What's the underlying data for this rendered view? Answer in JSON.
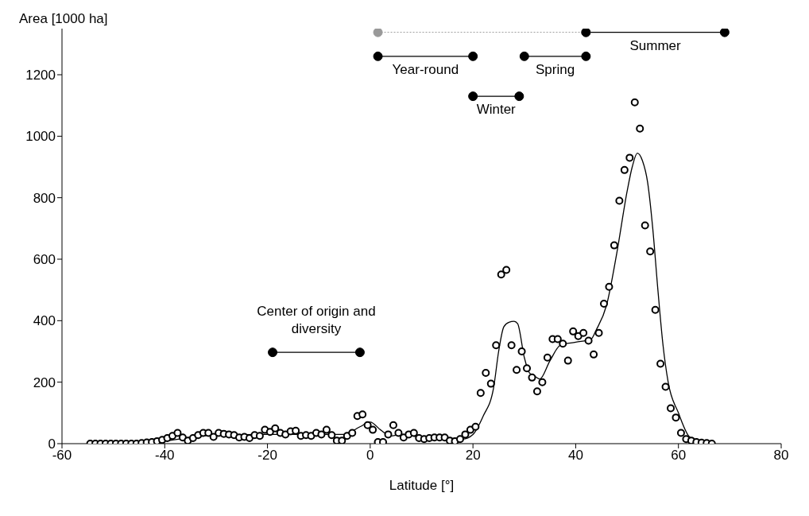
{
  "chart_data": {
    "type": "scatter",
    "xlabel": "Latitude [°]",
    "ylabel": "Area [1000 ha]",
    "xlim": [
      -60,
      80
    ],
    "xticks": [
      -60,
      -40,
      -20,
      0,
      20,
      40,
      60,
      80
    ],
    "ylim": [
      0,
      1350
    ],
    "yticks": [
      0,
      200,
      400,
      600,
      800,
      1000,
      1200
    ],
    "grid": false,
    "legend": false,
    "series": [
      {
        "marker": "circle",
        "color": "#000000",
        "x": [
          -54.5,
          -53.5,
          -52.5,
          -51.5,
          -50.5,
          -49.5,
          -48.5,
          -47.5,
          -46.5,
          -45.5,
          -44.5,
          -43.5,
          -42.5,
          -41.5,
          -40.5,
          -39.5,
          -38.5,
          -37.5,
          -36.5,
          -35.5,
          -34.5,
          -33.5,
          -32.5,
          -31.5,
          -30.5,
          -29.5,
          -28.5,
          -27.5,
          -26.5,
          -25.5,
          -24.5,
          -23.5,
          -22.5,
          -21.5,
          -20.5,
          -19.5,
          -18.5,
          -17.5,
          -16.5,
          -15.5,
          -14.5,
          -13.5,
          -12.5,
          -11.5,
          -10.5,
          -9.5,
          -8.5,
          -7.5,
          -6.5,
          -5.5,
          -4.5,
          -3.5,
          -2.5,
          -1.5,
          -0.5,
          0.5,
          1.5,
          2.5,
          3.5,
          4.5,
          5.5,
          6.5,
          7.5,
          8.5,
          9.5,
          10.5,
          11.5,
          12.5,
          13.5,
          14.5,
          15.5,
          16.5,
          17.5,
          18.5,
          19.5,
          20.5,
          21.5,
          22.5,
          23.5,
          24.5,
          25.5,
          26.5,
          27.5,
          28.5,
          29.5,
          30.5,
          31.5,
          32.5,
          33.5,
          34.5,
          35.5,
          36.5,
          37.5,
          38.5,
          39.5,
          40.5,
          41.5,
          42.5,
          43.5,
          44.5,
          45.5,
          46.5,
          47.5,
          48.5,
          49.5,
          50.5,
          51.5,
          52.5,
          53.5,
          54.5,
          55.5,
          56.5,
          57.5,
          58.5,
          59.5,
          60.5,
          61.5,
          62.5,
          63.5,
          64.5,
          65.5,
          66.5
        ],
        "values": [
          0,
          0,
          0,
          0,
          0,
          0,
          0,
          0,
          0,
          0,
          2,
          4,
          5,
          8,
          12,
          18,
          25,
          35,
          20,
          10,
          18,
          28,
          35,
          35,
          22,
          35,
          32,
          30,
          28,
          20,
          22,
          18,
          28,
          25,
          45,
          38,
          50,
          35,
          30,
          40,
          42,
          25,
          28,
          25,
          35,
          30,
          45,
          28,
          10,
          10,
          25,
          35,
          90,
          95,
          60,
          45,
          5,
          5,
          30,
          60,
          35,
          20,
          30,
          35,
          18,
          15,
          18,
          20,
          20,
          20,
          10,
          8,
          15,
          30,
          45,
          55,
          165,
          230,
          195,
          320,
          550,
          565,
          320,
          240,
          300,
          245,
          215,
          170,
          200,
          280,
          340,
          340,
          325,
          270,
          365,
          350,
          360,
          335,
          290,
          360,
          455,
          510,
          645,
          790,
          890,
          930,
          1110,
          1025,
          710,
          625,
          435,
          260,
          185,
          115,
          85,
          35,
          15,
          10,
          5,
          3,
          2,
          0
        ]
      },
      {
        "type": "line",
        "marker": "none",
        "line_style": "solid",
        "color": "#000000",
        "x": [
          -54.5,
          -45,
          -40,
          -35,
          -30,
          -20,
          -10,
          -5,
          -2,
          0,
          2,
          4,
          6,
          10,
          15,
          18,
          20,
          22,
          24,
          25,
          26,
          27,
          28,
          28.7,
          30,
          31,
          32,
          33,
          35,
          37,
          40,
          43,
          44,
          46,
          48,
          50,
          51,
          52,
          53,
          54,
          55,
          56,
          57,
          58,
          60,
          62,
          64,
          66.5
        ],
        "values": [
          0,
          2,
          8,
          20,
          28,
          30,
          30,
          30,
          55,
          70,
          45,
          25,
          30,
          20,
          15,
          15,
          30,
          90,
          180,
          300,
          380,
          395,
          398,
          390,
          280,
          230,
          220,
          210,
          270,
          320,
          330,
          340,
          370,
          450,
          620,
          820,
          900,
          945,
          920,
          850,
          700,
          500,
          320,
          200,
          100,
          25,
          5,
          0
        ]
      },
      {
        "type": "line",
        "name": "Center of origin and diversity",
        "marker": "circle",
        "line_style": "solid",
        "color": "#000000",
        "x": [
          -19,
          -2
        ],
        "values": [
          297,
          297
        ]
      },
      {
        "type": "line",
        "name": "Year-round",
        "marker": "circle",
        "line_style": "solid",
        "color": "#000000",
        "x": [
          1.5,
          20
        ],
        "values": [
          1260,
          1260
        ]
      },
      {
        "type": "line",
        "name": "Winter",
        "marker": "circle",
        "line_style": "solid",
        "color": "#000000",
        "x": [
          20,
          29
        ],
        "values": [
          1130,
          1130
        ]
      },
      {
        "type": "line",
        "name": "Spring",
        "marker": "circle",
        "line_style": "solid",
        "color": "#000000",
        "x": [
          30,
          42
        ],
        "values": [
          1260,
          1260
        ]
      },
      {
        "type": "line",
        "marker": "circle",
        "line_style": "dotted",
        "color": "#999999",
        "x": [
          1.5,
          42
        ],
        "values": [
          1338,
          1338
        ]
      },
      {
        "type": "line",
        "name": "Summer",
        "marker": "circle",
        "line_style": "solid",
        "color": "#000000",
        "x": [
          42,
          69
        ],
        "values": [
          1338,
          1338
        ]
      }
    ]
  }
}
